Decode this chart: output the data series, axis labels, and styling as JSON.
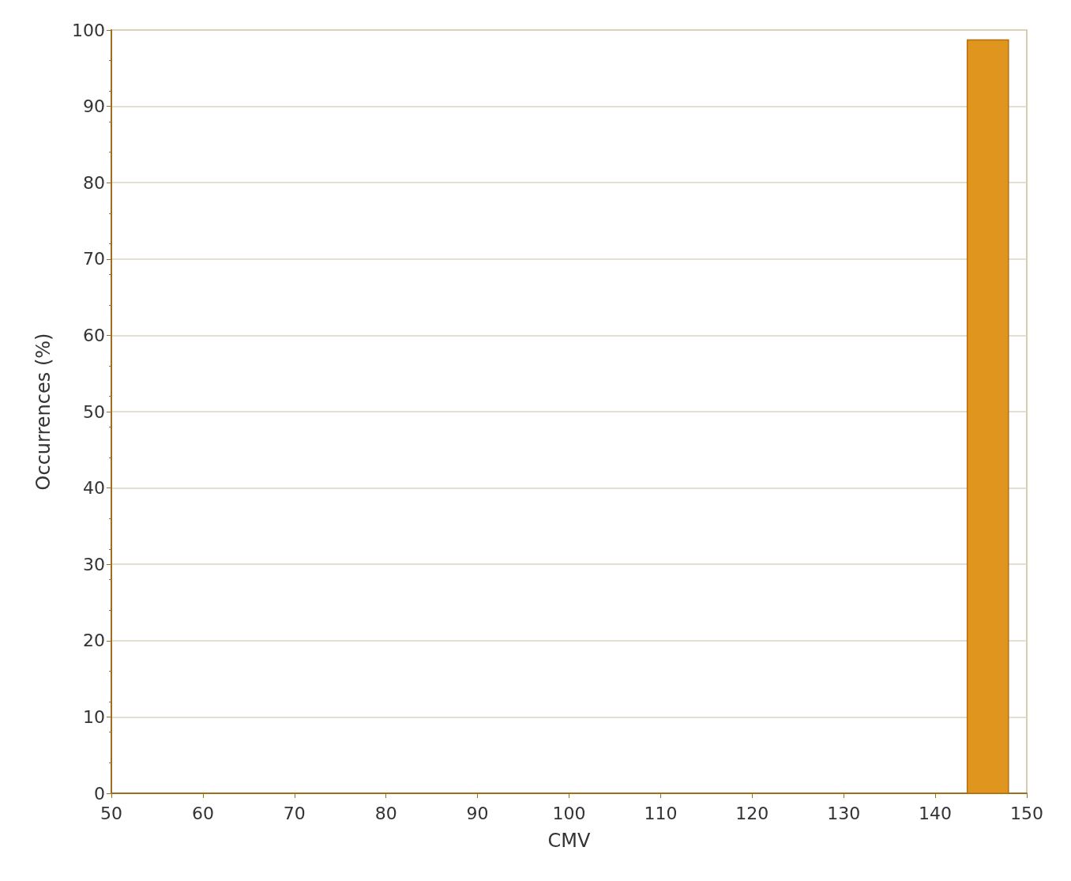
{
  "chart_data": {
    "type": "histogram",
    "xlabel": "CMV",
    "ylabel": "Occurrences (%)",
    "bins": [
      143.5,
      148
    ],
    "values": [
      98.7
    ],
    "color": "#e0951f",
    "xlim": [
      50,
      150
    ],
    "xticks": [
      50,
      60,
      70,
      80,
      90,
      100,
      110,
      120,
      130,
      140,
      150
    ],
    "ylim": [
      0,
      100
    ],
    "yticks": [
      0,
      10,
      20,
      30,
      40,
      50,
      60,
      70,
      80,
      90,
      100
    ],
    "grid": "y"
  }
}
